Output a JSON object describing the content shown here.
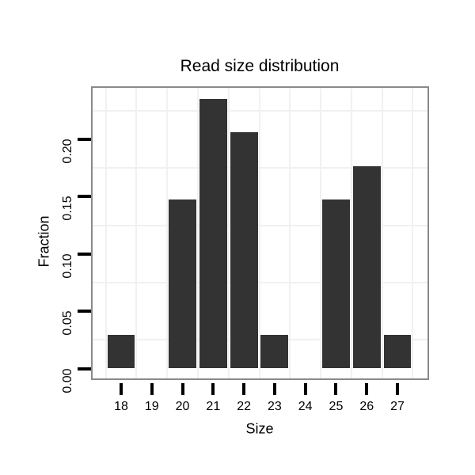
{
  "chart_data": {
    "type": "bar",
    "title": "Read size distribution",
    "xlabel": "Size",
    "ylabel": "Fraction",
    "categories": [
      "18",
      "19",
      "20",
      "21",
      "22",
      "23",
      "24",
      "25",
      "26",
      "27"
    ],
    "values": [
      0.0294,
      0,
      0.1471,
      0.2353,
      0.2059,
      0.0294,
      0,
      0.1471,
      0.1765,
      0.0294
    ],
    "y_ticks": [
      {
        "label": "0.00",
        "value": 0.0
      },
      {
        "label": "0.05",
        "value": 0.05
      },
      {
        "label": "0.10",
        "value": 0.1
      },
      {
        "label": "0.15",
        "value": 0.15
      },
      {
        "label": "0.20",
        "value": 0.2
      }
    ],
    "ylim": [
      0,
      0.245
    ],
    "bar_relative_width": 0.9,
    "grid": "faint minor gridlines only (midway between ticks), both axes",
    "legend": "none",
    "colors": {
      "bar_fill": "#333333",
      "gridline": "#f1f1f1",
      "panel_border": "#8a8a8a",
      "background": "#ffffff",
      "text": "#000000"
    }
  }
}
